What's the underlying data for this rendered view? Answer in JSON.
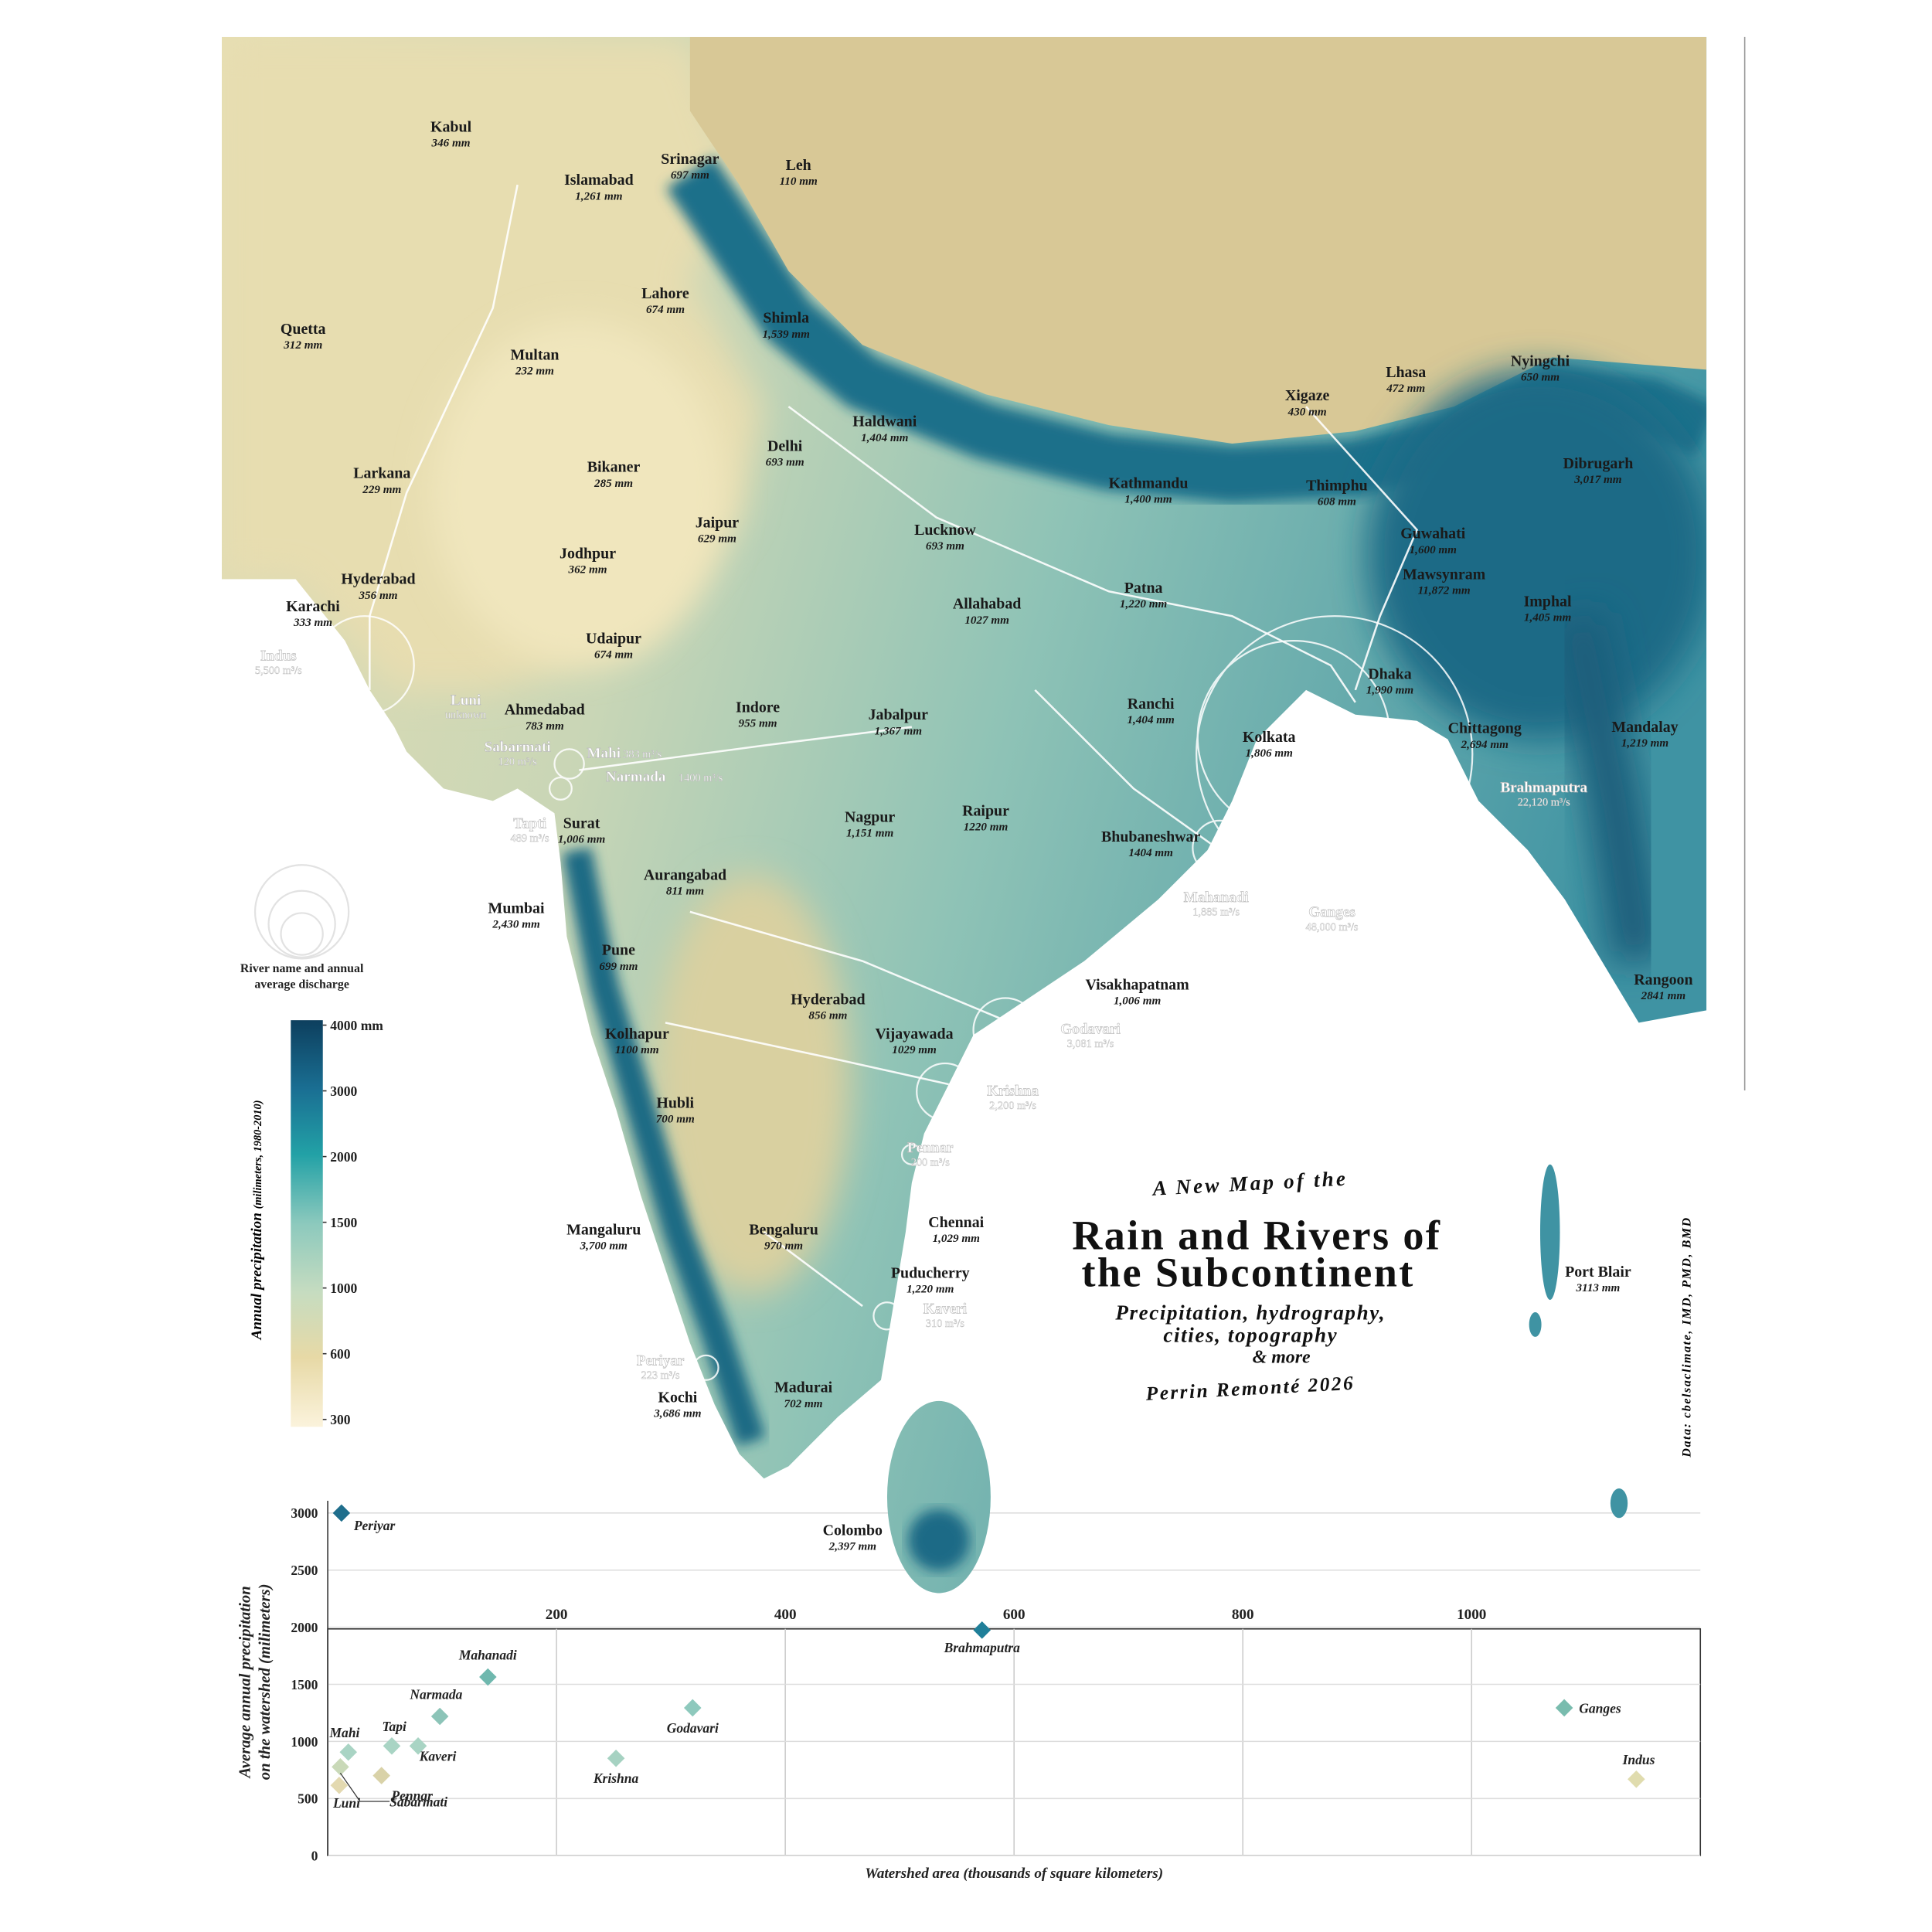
{
  "title": {
    "kicker": "A New Map of the",
    "lines": [
      "Rain and Rivers of",
      "the Subcontinent"
    ],
    "subtitle": [
      "Precipitation, hydrography,",
      "cities, topography",
      "& more"
    ],
    "author": "Perrin Remonté 2026"
  },
  "source": "Data: cbelsaclimate, IMD, PMD, BMD",
  "cities": [
    {
      "name": "Kabul",
      "precipitation": "346 mm"
    },
    {
      "name": "Islamabad",
      "precipitation": "1,261 mm"
    },
    {
      "name": "Srinagar",
      "precipitation": "697 mm"
    },
    {
      "name": "Leh",
      "precipitation": "110 mm"
    },
    {
      "name": "Quetta",
      "precipitation": "312 mm"
    },
    {
      "name": "Lahore",
      "precipitation": "674 mm"
    },
    {
      "name": "Shimla",
      "precipitation": "1,539 mm"
    },
    {
      "name": "Multan",
      "precipitation": "232 mm"
    },
    {
      "name": "Haldwani",
      "precipitation": "1,404 mm"
    },
    {
      "name": "Delhi",
      "precipitation": "693 mm"
    },
    {
      "name": "Lhasa",
      "precipitation": "472 mm"
    },
    {
      "name": "Nyingchi",
      "precipitation": "650 mm"
    },
    {
      "name": "Xigaze",
      "precipitation": "430 mm"
    },
    {
      "name": "Larkana",
      "precipitation": "229 mm"
    },
    {
      "name": "Bikaner",
      "precipitation": "285 mm"
    },
    {
      "name": "Kathmandu",
      "precipitation": "1,400 mm"
    },
    {
      "name": "Thimphu",
      "precipitation": "608 mm"
    },
    {
      "name": "Dibrugarh",
      "precipitation": "3,017 mm"
    },
    {
      "name": "Jaipur",
      "precipitation": "629 mm"
    },
    {
      "name": "Lucknow",
      "precipitation": "693 mm"
    },
    {
      "name": "Guwahati",
      "precipitation": "1,600 mm"
    },
    {
      "name": "Jodhpur",
      "precipitation": "362 mm"
    },
    {
      "name": "Mawsynram",
      "precipitation": "11,872 mm"
    },
    {
      "name": "Hyderabad",
      "precipitation": "356 mm"
    },
    {
      "name": "Karachi",
      "precipitation": "333 mm"
    },
    {
      "name": "Allahabad",
      "precipitation": "1027 mm"
    },
    {
      "name": "Patna",
      "precipitation": "1,220 mm"
    },
    {
      "name": "Imphal",
      "precipitation": "1,405 mm"
    },
    {
      "name": "Udaipur",
      "precipitation": "674 mm"
    },
    {
      "name": "Dhaka",
      "precipitation": "1,990 mm"
    },
    {
      "name": "Ahmedabad",
      "precipitation": "783 mm"
    },
    {
      "name": "Indore",
      "precipitation": "955 mm"
    },
    {
      "name": "Jabalpur",
      "precipitation": "1,367 mm"
    },
    {
      "name": "Ranchi",
      "precipitation": "1,404 mm"
    },
    {
      "name": "Chittagong",
      "precipitation": "2,694 mm"
    },
    {
      "name": "Mandalay",
      "precipitation": "1,219 mm"
    },
    {
      "name": "Kolkata",
      "precipitation": "1,806 mm"
    },
    {
      "name": "Surat",
      "precipitation": "1,006 mm"
    },
    {
      "name": "Nagpur",
      "precipitation": "1,151 mm"
    },
    {
      "name": "Raipur",
      "precipitation": "1220 mm"
    },
    {
      "name": "Bhubaneshwar",
      "precipitation": "1404 mm"
    },
    {
      "name": "Aurangabad",
      "precipitation": "811 mm"
    },
    {
      "name": "Mumbai",
      "precipitation": "2,430 mm"
    },
    {
      "name": "Pune",
      "precipitation": "699 mm"
    },
    {
      "name": "Visakhapatnam",
      "precipitation": "1,006 mm"
    },
    {
      "name": "Hyderabad",
      "precipitation": "856 mm"
    },
    {
      "name": "Kolhapur",
      "precipitation": "1100 mm"
    },
    {
      "name": "Vijayawada",
      "precipitation": "1029 mm"
    },
    {
      "name": "Hubli",
      "precipitation": "700 mm"
    },
    {
      "name": "Chennai",
      "precipitation": "1,029 mm"
    },
    {
      "name": "Mangaluru",
      "precipitation": "3,700 mm"
    },
    {
      "name": "Bengaluru",
      "precipitation": "970 mm"
    },
    {
      "name": "Puducherry",
      "precipitation": "1,220 mm"
    },
    {
      "name": "Port Blair",
      "precipitation": "3113 mm"
    },
    {
      "name": "Kochi",
      "precipitation": "3,686 mm"
    },
    {
      "name": "Madurai",
      "precipitation": "702 mm"
    },
    {
      "name": "Colombo",
      "precipitation": "2,397 mm"
    },
    {
      "name": "Rangoon",
      "precipitation": "2841 mm"
    }
  ],
  "rivers": [
    {
      "name": "Indus",
      "discharge": "5,500 m³/s"
    },
    {
      "name": "Luni",
      "discharge": "unknown"
    },
    {
      "name": "Sabarmati",
      "discharge": "120 m³/s"
    },
    {
      "name": "Mahi",
      "discharge": "383 m³/s"
    },
    {
      "name": "Narmada",
      "discharge": "1400 m³/s"
    },
    {
      "name": "Tapti",
      "discharge": "489 m³/s"
    },
    {
      "name": "Mahanadi",
      "discharge": "1,885 m³/s"
    },
    {
      "name": "Ganges",
      "discharge": "48,000 m³/s"
    },
    {
      "name": "Brahmaputra",
      "discharge": "22,120 m³/s"
    },
    {
      "name": "Godavari",
      "discharge": "3,081 m³/s"
    },
    {
      "name": "Krishna",
      "discharge": "2,200 m³/s"
    },
    {
      "name": "Pennar",
      "discharge": "200 m³/s"
    },
    {
      "name": "Kaveri",
      "discharge": "310 m³/s"
    },
    {
      "name": "Periyar",
      "discharge": "223 m³/s"
    }
  ],
  "river_legend": [
    "River name and annual",
    "average discharge"
  ],
  "precip_legend": {
    "title": "Annual precipitation",
    "note": "(milimeters, 1980-2010)",
    "ticks": [
      {
        "value": 4000,
        "label": "4000 mm"
      },
      3000,
      2000,
      1500,
      1000,
      600,
      300
    ]
  },
  "chart_data": {
    "type": "scatter",
    "x_label": "Watershed area (thousands of square kilometers)",
    "y_label": [
      "Average annual precipitation",
      "on the watershed (milimeters)"
    ],
    "xlim": [
      0,
      1200
    ],
    "ylim": [
      0,
      3100
    ],
    "xticks": [
      200,
      400,
      600,
      800,
      1000
    ],
    "yticks": [
      0,
      500,
      1000,
      1500,
      2000,
      2500,
      3000
    ],
    "grid": true,
    "labels": [
      "Periyar",
      "Brahmaputra",
      "Mahanadi",
      "Narmada",
      "Godavari",
      "Tapi",
      "Mahi",
      "Kaveri",
      "Krishna",
      "Pennar",
      "Sabarmati",
      "Luni",
      "Ganges",
      "Indus"
    ],
    "x": [
      12,
      572,
      140,
      98,
      319,
      56,
      18,
      79,
      252,
      47,
      11,
      10,
      1081,
      1144
    ],
    "values": [
      3000,
      1975,
      1564,
      1219,
      1294,
      960,
      906,
      960,
      852,
      701,
      777,
      615,
      1294,
      669
    ],
    "colors": [
      "#1f6e8c",
      "#1f7f99",
      "#6fb8ae",
      "#8cc4b8",
      "#8ec9bd",
      "#a9d4c4",
      "#a9d4c4",
      "#a9d4c4",
      "#a6d2c2",
      "#d9d2a8",
      "#c9d9b8",
      "#e3d9b0",
      "#79bcae",
      "#e0dcae"
    ]
  }
}
